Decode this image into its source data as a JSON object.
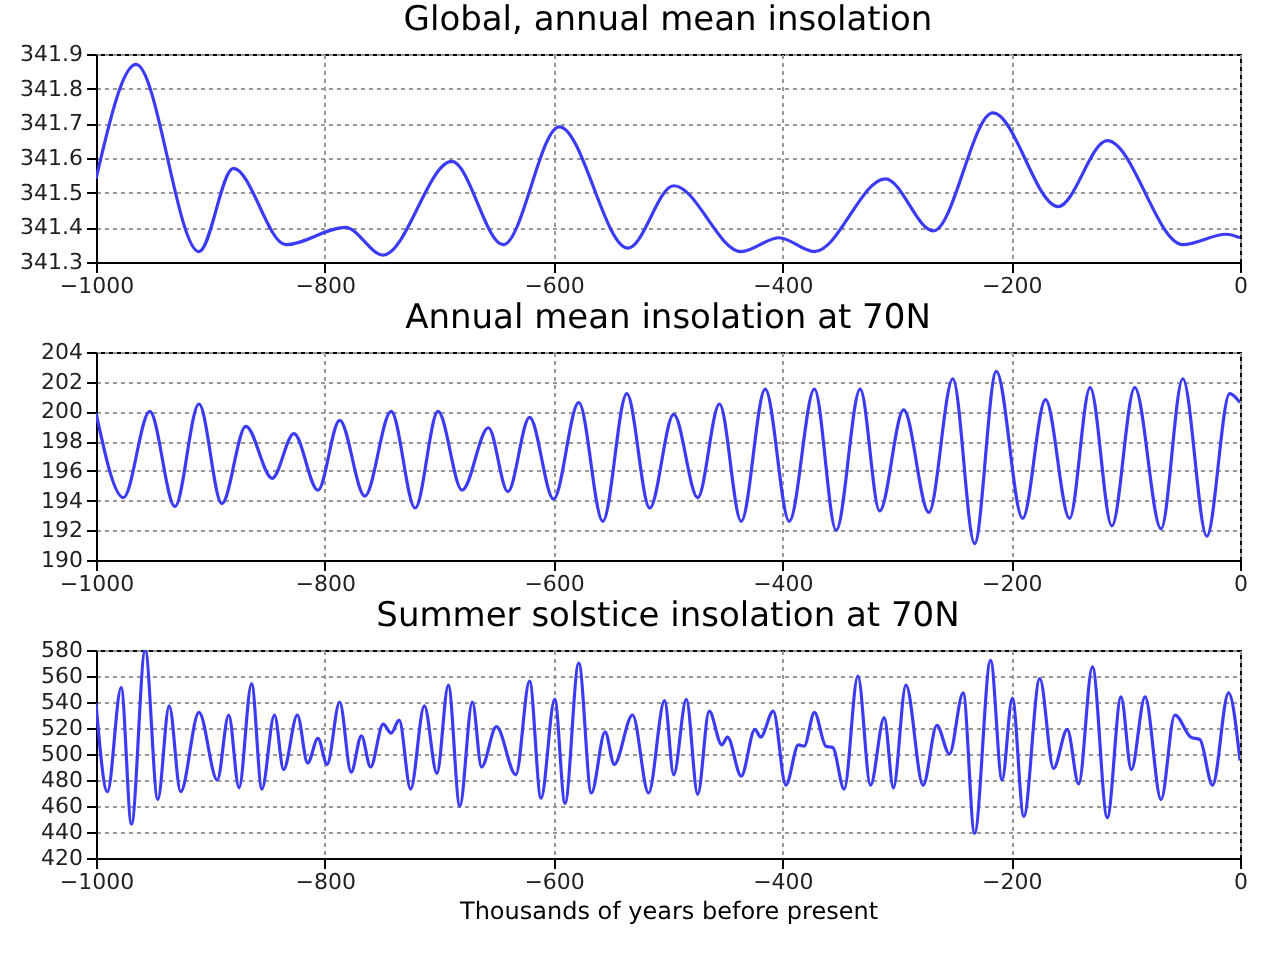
{
  "chart_data": [
    {
      "type": "line",
      "title": "Global, annual mean insolation",
      "xlim": [
        -1000,
        0
      ],
      "xticks": [
        -1000,
        -800,
        -600,
        -400,
        -200,
        0
      ],
      "ylim": [
        341.3,
        341.9
      ],
      "yticks": [
        341.3,
        341.4,
        341.5,
        341.6,
        341.7,
        341.8,
        341.9
      ],
      "grid": true,
      "marker": "none",
      "line_style": "solid",
      "x": [
        -1000,
        -965,
        -910,
        -880,
        -834,
        -782,
        -749,
        -689,
        -644,
        -595,
        -535,
        -495,
        -436,
        -403,
        -372,
        -310,
        -268,
        -216,
        -159,
        -116,
        -50,
        -12,
        0
      ],
      "series": [
        {
          "color": "#3b3bf5",
          "values": [
            341.54,
            341.87,
            341.33,
            341.57,
            341.35,
            341.4,
            341.32,
            341.59,
            341.35,
            341.69,
            341.34,
            341.52,
            341.33,
            341.37,
            341.33,
            341.54,
            341.39,
            341.73,
            341.46,
            341.65,
            341.35,
            341.38,
            341.37
          ]
        }
      ]
    },
    {
      "type": "line",
      "title": "Annual mean insolation at 70N",
      "xlim": [
        -1000,
        0
      ],
      "xticks": [
        -1000,
        -800,
        -600,
        -400,
        -200,
        0
      ],
      "ylim": [
        190,
        204
      ],
      "yticks": [
        190,
        192,
        194,
        196,
        198,
        200,
        202,
        204
      ],
      "grid": true,
      "marker": "none",
      "line_style": "solid",
      "x": [
        -1000,
        -976,
        -953,
        -931,
        -910,
        -890,
        -869,
        -846,
        -827,
        -806,
        -787,
        -765,
        -742,
        -721,
        -701,
        -680,
        -657,
        -640,
        -621,
        -600,
        -578,
        -557,
        -536,
        -516,
        -495,
        -474,
        -455,
        -436,
        -415,
        -394,
        -372,
        -353,
        -332,
        -315,
        -294,
        -272,
        -251,
        -232,
        -213,
        -190,
        -170,
        -149,
        -131,
        -112,
        -92,
        -69,
        -50,
        -29,
        -9,
        0
      ],
      "series": [
        {
          "color": "#3b3bf5",
          "values": [
            199.9,
            194.2,
            200.0,
            193.6,
            200.5,
            193.8,
            199.0,
            195.5,
            198.5,
            194.7,
            199.4,
            194.3,
            200.0,
            193.5,
            200.0,
            194.7,
            198.9,
            194.6,
            199.6,
            194.1,
            200.6,
            192.6,
            201.2,
            193.5,
            199.8,
            194.2,
            200.5,
            192.6,
            201.5,
            192.6,
            201.5,
            192.0,
            201.5,
            193.3,
            200.1,
            193.2,
            202.2,
            191.1,
            202.7,
            192.8,
            200.8,
            192.8,
            201.6,
            192.3,
            201.6,
            192.1,
            202.2,
            191.6,
            201.2,
            200.6
          ]
        }
      ]
    },
    {
      "type": "line",
      "title": "Summer solstice insolation at 70N",
      "xlabel": "Thousands of years before present",
      "xlim": [
        -1000,
        0
      ],
      "xticks": [
        -1000,
        -800,
        -600,
        -400,
        -200,
        0
      ],
      "ylim": [
        420,
        580
      ],
      "yticks": [
        420,
        440,
        460,
        480,
        500,
        520,
        540,
        560,
        580
      ],
      "grid": true,
      "marker": "none",
      "line_style": "solid",
      "x": [
        -1000,
        -990,
        -978,
        -969,
        -957,
        -946,
        -936,
        -926,
        -910,
        -894,
        -884,
        -875,
        -864,
        -855,
        -844,
        -836,
        -824,
        -815,
        -806,
        -798,
        -787,
        -777,
        -768,
        -760,
        -749,
        -742,
        -735,
        -725,
        -713,
        -702,
        -692,
        -682,
        -671,
        -663,
        -650,
        -633,
        -621,
        -611,
        -599,
        -590,
        -578,
        -567,
        -555,
        -547,
        -531,
        -517,
        -503,
        -495,
        -484,
        -474,
        -464,
        -453,
        -448,
        -436,
        -424,
        -419,
        -408,
        -397,
        -386,
        -381,
        -372,
        -362,
        -356,
        -346,
        -334,
        -323,
        -311,
        -303,
        -292,
        -277,
        -265,
        -254,
        -242,
        -232,
        -218,
        -208,
        -199,
        -189,
        -175,
        -163,
        -151,
        -141,
        -129,
        -116,
        -104,
        -95,
        -83,
        -69,
        -57,
        -43,
        -35,
        -24,
        -10,
        0
      ],
      "series": [
        {
          "color": "#3b3bf5",
          "values": [
            539,
            471,
            551,
            446,
            580,
            465,
            537,
            471,
            532,
            480,
            530,
            474,
            554,
            473,
            530,
            488,
            530,
            493,
            512,
            492,
            540,
            486,
            514,
            490,
            523,
            516,
            526,
            473,
            537,
            485,
            553,
            460,
            540,
            490,
            521,
            484,
            556,
            466,
            542,
            462,
            570,
            470,
            517,
            492,
            530,
            470,
            541,
            484,
            542,
            469,
            533,
            507,
            513,
            483,
            519,
            513,
            533,
            476,
            507,
            506,
            532,
            506,
            505,
            473,
            560,
            476,
            528,
            474,
            553,
            476,
            522,
            500,
            547,
            439,
            572,
            480,
            543,
            452,
            558,
            489,
            519,
            477,
            567,
            451,
            544,
            488,
            544,
            465,
            530,
            513,
            511,
            476,
            547,
            495
          ]
        }
      ]
    }
  ]
}
